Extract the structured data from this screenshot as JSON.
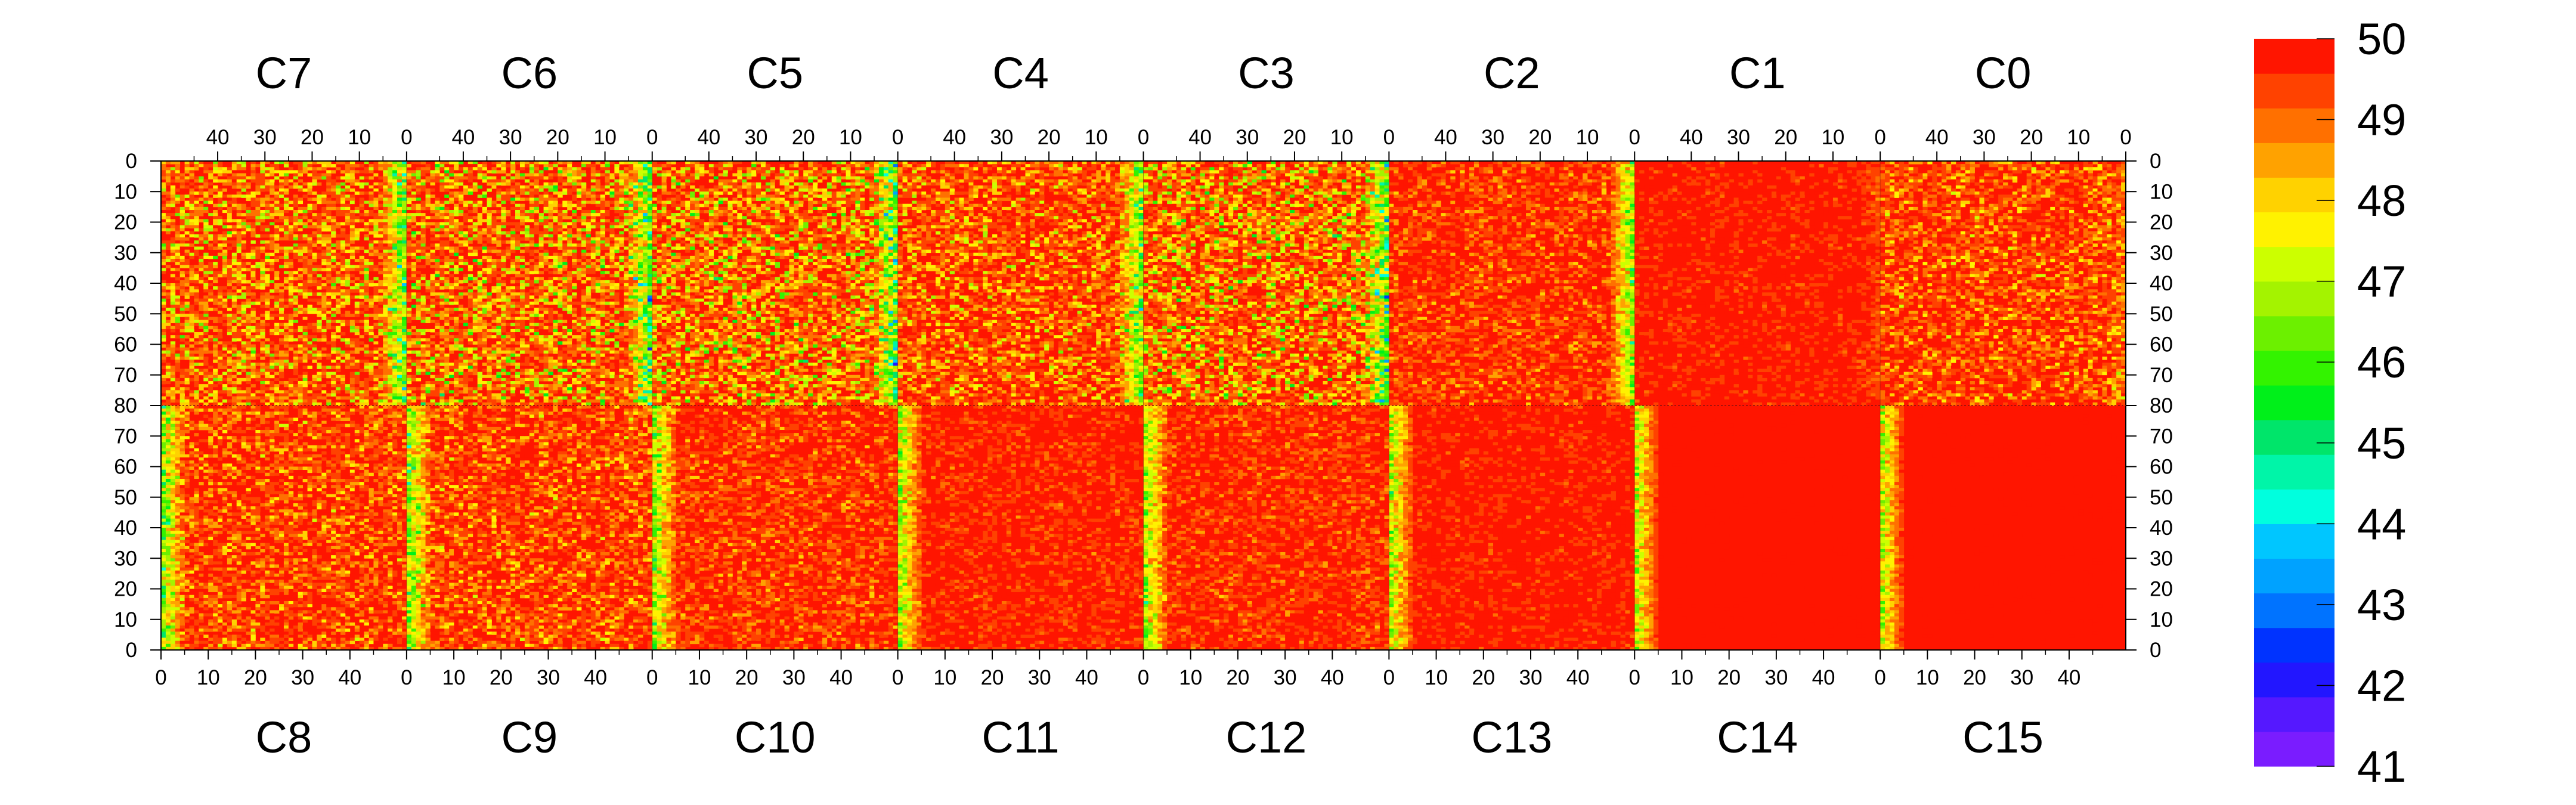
{
  "chart_data": {
    "type": "heatmap",
    "title": "",
    "top_chips": [
      "C7",
      "C6",
      "C5",
      "C4",
      "C3",
      "C2",
      "C1",
      "C0"
    ],
    "bottom_chips": [
      "C8",
      "C9",
      "C10",
      "C11",
      "C12",
      "C13",
      "C14",
      "C15"
    ],
    "top_x_ticks": [
      "40",
      "30",
      "20",
      "10",
      "0"
    ],
    "bottom_x_ticks": [
      "0",
      "10",
      "20",
      "30",
      "40"
    ],
    "top_y_ticks": [
      "0",
      "10",
      "20",
      "30",
      "40",
      "50",
      "60",
      "70"
    ],
    "middle_y_tick": "80",
    "bottom_y_ticks": [
      "70",
      "60",
      "50",
      "40",
      "30",
      "20",
      "10",
      "0"
    ],
    "columns_per_chip": 52,
    "rows_per_half": 80,
    "zlim": [
      41,
      50
    ],
    "colorbar_labels": [
      "50",
      "49",
      "48",
      "47",
      "46",
      "45",
      "44",
      "43",
      "42",
      "41"
    ],
    "colorbar_colors": [
      "#7a1cff",
      "#5518ff",
      "#2216ff",
      "#0033ff",
      "#0073ff",
      "#00a2ff",
      "#00c6ff",
      "#00ffde",
      "#00f5a8",
      "#00e56a",
      "#00f01a",
      "#33f300",
      "#6cf000",
      "#a4f300",
      "#ccff00",
      "#fff200",
      "#ffd200",
      "#ffa200",
      "#ff7000",
      "#ff4200",
      "#ff1500"
    ],
    "chip_mean_levels_top": [
      49.4,
      49.3,
      49.3,
      49.5,
      49.3,
      49.7,
      49.85,
      49.6
    ],
    "chip_mean_levels_bottom": [
      49.6,
      49.6,
      49.7,
      49.8,
      49.75,
      49.85,
      49.95,
      49.95
    ],
    "notes": "Per-channel values across 16 chips; a column band near column 0 of chips C6-C2 (top) and C8-C13 (bottom) shows lower values (45-48)."
  }
}
